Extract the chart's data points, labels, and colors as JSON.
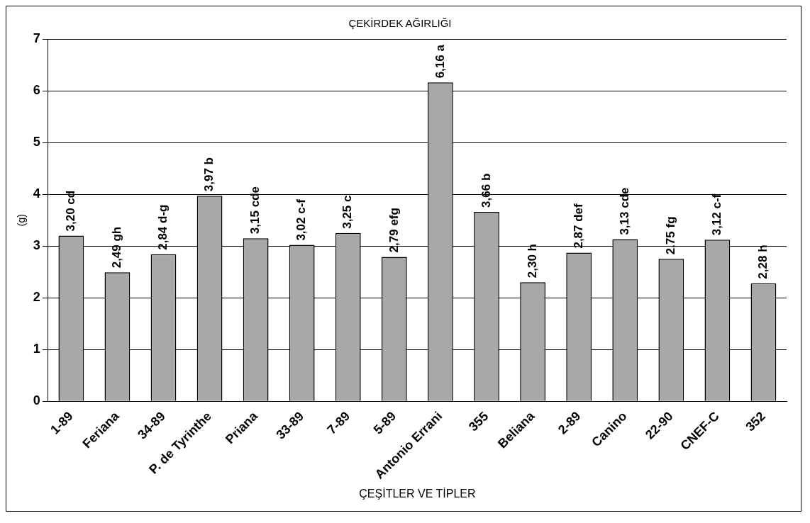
{
  "chart_data": {
    "type": "bar",
    "title": "ÇEKİRDEK AĞIRLIĞI",
    "xlabel": "ÇEŞİTLER VE TİPLER",
    "ylabel": "(g)",
    "categories": [
      "1-89",
      "Feriana",
      "34-89",
      "P. de Tyrinthe",
      "Priana",
      "33-89",
      "7-89",
      "5-89",
      "Antonio Errani",
      "355",
      "Beliana",
      "2-89",
      "Canino",
      "22-90",
      "CNEF-C",
      "352"
    ],
    "values": [
      3.2,
      2.49,
      2.84,
      3.97,
      3.15,
      3.02,
      3.25,
      2.79,
      6.16,
      3.66,
      2.3,
      2.87,
      3.13,
      2.75,
      3.12,
      2.28
    ],
    "value_labels": [
      "3,20 cd",
      "2,49 gh",
      "2,84 d-g",
      "3,97 b",
      "3,15 cde",
      "3,02 c-f",
      "3,25 c",
      "2,79 efg",
      "6,16 a",
      "3,66 b",
      "2,30 h",
      "2,87 def",
      "3,13 cde",
      "2,75 fg",
      "3,12 c-f",
      "2,28 h"
    ],
    "color": "#a8a8a8",
    "ylim": [
      0,
      7
    ],
    "yticks": [
      0,
      1,
      2,
      3,
      4,
      5,
      6,
      7
    ],
    "grid": "y",
    "legend": false
  }
}
